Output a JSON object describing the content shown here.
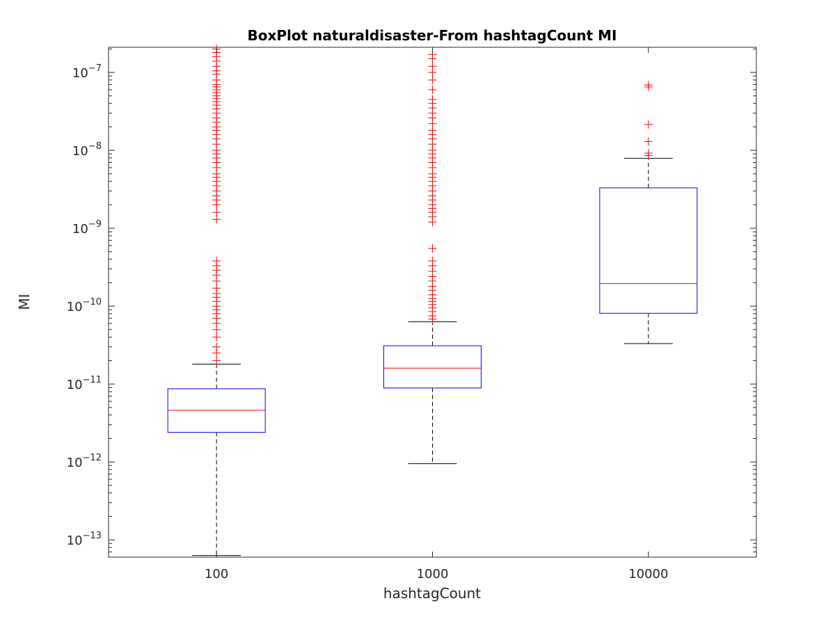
{
  "chart_data": {
    "type": "box",
    "title": "BoxPlot naturaldisaster-From hashtagCount MI",
    "xlabel": "hashtagCount",
    "ylabel": "MI",
    "yscale": "log",
    "ylim": [
      6e-14,
      2.1e-07
    ],
    "yticks": [
      {
        "value": 1e-13,
        "base": "10",
        "exp": "−13"
      },
      {
        "value": 1e-12,
        "base": "10",
        "exp": "−12"
      },
      {
        "value": 1e-11,
        "base": "10",
        "exp": "−11"
      },
      {
        "value": 1e-10,
        "base": "10",
        "exp": "−10"
      },
      {
        "value": 1e-09,
        "base": "10",
        "exp": "−9"
      },
      {
        "value": 1e-08,
        "base": "10",
        "exp": "−8"
      },
      {
        "value": 1e-07,
        "base": "10",
        "exp": "−7"
      }
    ],
    "categories": [
      "100",
      "1000",
      "10000"
    ],
    "grid": false,
    "colors": {
      "box": "#0000ff",
      "median": "#ff0000",
      "whisker": "#000000",
      "outlier": "#ff0000",
      "axis": "#262626"
    },
    "boxes": [
      {
        "category": "100",
        "whisker_low": 6.3e-14,
        "q1": 2.4e-12,
        "median": 4.6e-12,
        "q3": 8.7e-12,
        "whisker_high": 1.8e-11,
        "outliers": [
          2e-11,
          2.5e-11,
          3e-11,
          4e-11,
          5e-11,
          6e-11,
          7e-11,
          8e-11,
          9e-11,
          1e-10,
          1.15e-10,
          1.3e-10,
          1.45e-10,
          1.7e-10,
          2.1e-10,
          2.5e-10,
          2.9e-10,
          3.3e-10,
          3.8e-10,
          1.3e-09,
          1.6e-09,
          2e-09,
          2.3e-09,
          2.6e-09,
          3e-09,
          3.5e-09,
          4e-09,
          4.5e-09,
          5e-09,
          6e-09,
          7e-09,
          8e-09,
          9e-09,
          1e-08,
          1.2e-08,
          1.4e-08,
          1.6e-08,
          1.8e-08,
          2e-08,
          2.3e-08,
          2.6e-08,
          3e-08,
          3.4e-08,
          3.8e-08,
          4.2e-08,
          4.6e-08,
          5e-08,
          5.5e-08,
          6e-08,
          6.5e-08,
          7e-08,
          8e-08,
          9.5e-08,
          1.05e-07,
          1.2e-07,
          1.4e-07,
          1.6e-07,
          1.8e-07,
          2e-07
        ]
      },
      {
        "category": "1000",
        "whisker_low": 9.5e-13,
        "q1": 8.9e-12,
        "median": 1.6e-11,
        "q3": 3.1e-11,
        "whisker_high": 6.3e-11,
        "outliers": [
          6.8e-11,
          7.5e-11,
          8.5e-11,
          9.5e-11,
          1.05e-10,
          1.15e-10,
          1.25e-10,
          1.4e-10,
          1.6e-10,
          1.8e-10,
          2.1e-10,
          2.4e-10,
          2.8e-10,
          3.3e-10,
          3.8e-10,
          5.5e-10,
          1.2e-09,
          1.4e-09,
          1.6e-09,
          1.8e-09,
          2e-09,
          2.3e-09,
          2.6e-09,
          3e-09,
          3.5e-09,
          4e-09,
          4.5e-09,
          5e-09,
          6e-09,
          7e-09,
          8e-09,
          9e-09,
          1e-08,
          1.2e-08,
          1.4e-08,
          1.6e-08,
          1.8e-08,
          2.2e-08,
          2.6e-08,
          3e-08,
          3.5e-08,
          4e-08,
          4.5e-08,
          6e-08,
          8e-08,
          1e-07,
          1.2e-07,
          1.5e-07,
          1.7e-07
        ]
      },
      {
        "category": "10000",
        "whisker_low": 3.3e-11,
        "q1": 8.1e-11,
        "median": 1.95e-10,
        "q3": 3.3e-09,
        "whisker_high": 7.9e-09,
        "outliers": [
          8.6e-09,
          9.2e-09,
          1.3e-08,
          2.15e-08,
          6.5e-08,
          6.9e-08
        ]
      }
    ]
  }
}
